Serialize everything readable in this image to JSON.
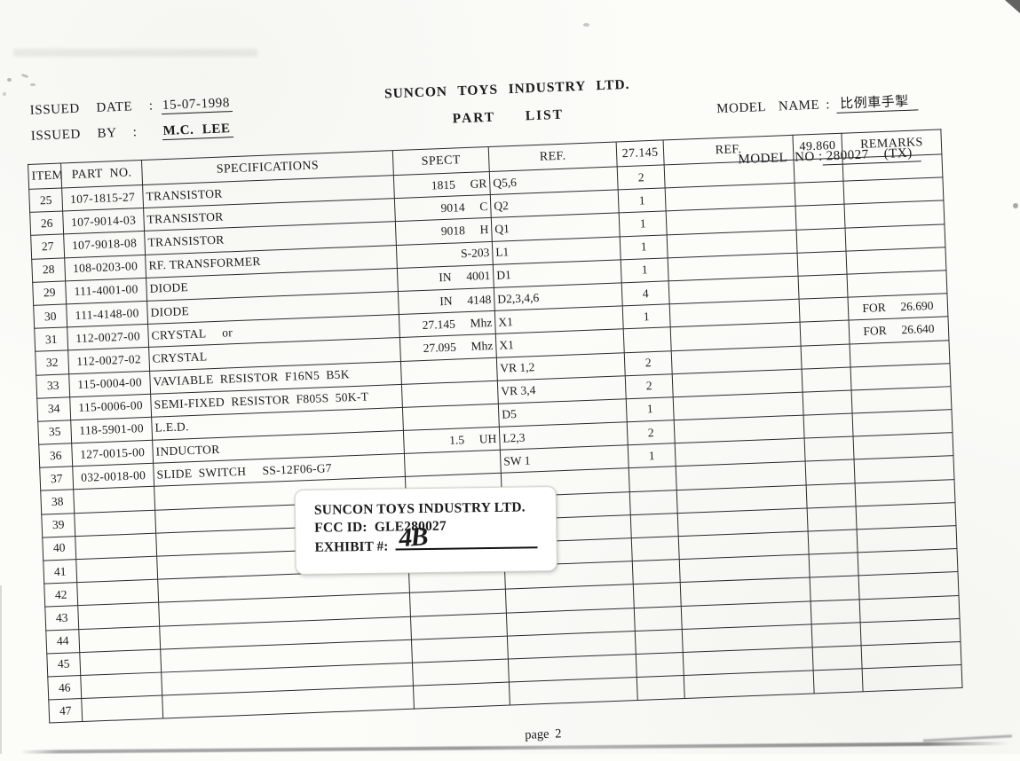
{
  "page": {
    "company_title": "SUNCON  TOYS  INDUSTRY  LTD.",
    "doc_title": "PART LIST",
    "page_number": "page 2"
  },
  "meta": {
    "issued_date_label": "ISSUED  DATE  : ",
    "issued_date": "15-07-1998",
    "issued_by_label": "ISSUED  BY  :   ",
    "issued_by": "M.C. LEE",
    "model_name_label": "MODEL  NAME : ",
    "model_name": "比例車手掣",
    "model_no_label": "MODEL  NO :",
    "model_no": "280027    (TX)"
  },
  "table": {
    "headers": [
      "ITEM",
      "PART  NO.",
      "SPECIFICATIONS",
      "SPECT",
      "REF.",
      "27.145",
      "REF.",
      "49.860",
      "REMARKS"
    ],
    "rows": [
      {
        "item": "25",
        "part_no": "107-1815-27",
        "spec": "TRANSISTOR",
        "spect": "1815  GR",
        "ref1": "Q5,6",
        "qty1": "2",
        "ref2": "",
        "qty2": "",
        "remarks": ""
      },
      {
        "item": "26",
        "part_no": "107-9014-03",
        "spec": "TRANSISTOR",
        "spect": "9014  C",
        "ref1": "Q2",
        "qty1": "1",
        "ref2": "",
        "qty2": "",
        "remarks": ""
      },
      {
        "item": "27",
        "part_no": "107-9018-08",
        "spec": "TRANSISTOR",
        "spect": "9018  H",
        "ref1": "Q1",
        "qty1": "1",
        "ref2": "",
        "qty2": "",
        "remarks": ""
      },
      {
        "item": "28",
        "part_no": "108-0203-00",
        "spec": "RF. TRANSFORMER",
        "spect": "S-203",
        "ref1": "L1",
        "qty1": "1",
        "ref2": "",
        "qty2": "",
        "remarks": ""
      },
      {
        "item": "29",
        "part_no": "111-4001-00",
        "spec": "DIODE",
        "spect": "IN  4001",
        "ref1": "D1",
        "qty1": "1",
        "ref2": "",
        "qty2": "",
        "remarks": ""
      },
      {
        "item": "30",
        "part_no": "111-4148-00",
        "spec": "DIODE",
        "spect": "IN  4148",
        "ref1": "D2,3,4,6",
        "qty1": "4",
        "ref2": "",
        "qty2": "",
        "remarks": ""
      },
      {
        "item": "31",
        "part_no": "112-0027-00",
        "spec": "CRYSTAL     or",
        "spect": "27.145  Mhz",
        "ref1": "X1",
        "qty1": "1",
        "ref2": "",
        "qty2": "",
        "remarks": "FOR  26.690"
      },
      {
        "item": "32",
        "part_no": "112-0027-02",
        "spec": "CRYSTAL",
        "spect": "27.095  Mhz",
        "ref1": "X1",
        "qty1": "",
        "ref2": "",
        "qty2": "",
        "remarks": "FOR  26.640"
      },
      {
        "item": "33",
        "part_no": "115-0004-00",
        "spec": "VAVIABLE  RESISTOR  F16N5  B5K",
        "spect": "",
        "ref1": "VR 1,2",
        "qty1": "2",
        "ref2": "",
        "qty2": "",
        "remarks": ""
      },
      {
        "item": "34",
        "part_no": "115-0006-00",
        "spec": "SEMI-FIXED  RESISTOR  F805S  50K-T",
        "spect": "",
        "ref1": "VR 3,4",
        "qty1": "2",
        "ref2": "",
        "qty2": "",
        "remarks": ""
      },
      {
        "item": "35",
        "part_no": "118-5901-00",
        "spec": "L.E.D.",
        "spect": "",
        "ref1": "D5",
        "qty1": "1",
        "ref2": "",
        "qty2": "",
        "remarks": ""
      },
      {
        "item": "36",
        "part_no": "127-0015-00",
        "spec": "INDUCTOR",
        "spect": "1.5  UH",
        "ref1": "L2,3",
        "qty1": "2",
        "ref2": "",
        "qty2": "",
        "remarks": ""
      },
      {
        "item": "37",
        "part_no": "032-0018-00",
        "spec": "SLIDE  SWITCH     SS-12F06-G7",
        "spect": "",
        "ref1": "SW 1",
        "qty1": "1",
        "ref2": "",
        "qty2": "",
        "remarks": ""
      },
      {
        "item": "38",
        "part_no": "",
        "spec": "",
        "spect": "",
        "ref1": "",
        "qty1": "",
        "ref2": "",
        "qty2": "",
        "remarks": ""
      },
      {
        "item": "39",
        "part_no": "",
        "spec": "",
        "spect": "",
        "ref1": "",
        "qty1": "",
        "ref2": "",
        "qty2": "",
        "remarks": ""
      },
      {
        "item": "40",
        "part_no": "",
        "spec": "",
        "spect": "",
        "ref1": "",
        "qty1": "",
        "ref2": "",
        "qty2": "",
        "remarks": ""
      },
      {
        "item": "41",
        "part_no": "",
        "spec": "",
        "spect": "",
        "ref1": "",
        "qty1": "",
        "ref2": "",
        "qty2": "",
        "remarks": ""
      },
      {
        "item": "42",
        "part_no": "",
        "spec": "",
        "spect": "",
        "ref1": "",
        "qty1": "",
        "ref2": "",
        "qty2": "",
        "remarks": ""
      },
      {
        "item": "43",
        "part_no": "",
        "spec": "",
        "spect": "",
        "ref1": "",
        "qty1": "",
        "ref2": "",
        "qty2": "",
        "remarks": ""
      },
      {
        "item": "44",
        "part_no": "",
        "spec": "",
        "spect": "",
        "ref1": "",
        "qty1": "",
        "ref2": "",
        "qty2": "",
        "remarks": ""
      },
      {
        "item": "45",
        "part_no": "",
        "spec": "",
        "spect": "",
        "ref1": "",
        "qty1": "",
        "ref2": "",
        "qty2": "",
        "remarks": ""
      },
      {
        "item": "46",
        "part_no": "",
        "spec": "",
        "spect": "",
        "ref1": "",
        "qty1": "",
        "ref2": "",
        "qty2": "",
        "remarks": ""
      },
      {
        "item": "47",
        "part_no": "",
        "spec": "",
        "spect": "",
        "ref1": "",
        "qty1": "",
        "ref2": "",
        "qty2": "",
        "remarks": ""
      }
    ]
  },
  "stamp": {
    "company": "SUNCON TOYS INDUSTRY LTD.",
    "fcc_line": "FCC ID:  GLE280027",
    "exhibit_label": "EXHIBIT #:",
    "exhibit_value": "4B"
  }
}
